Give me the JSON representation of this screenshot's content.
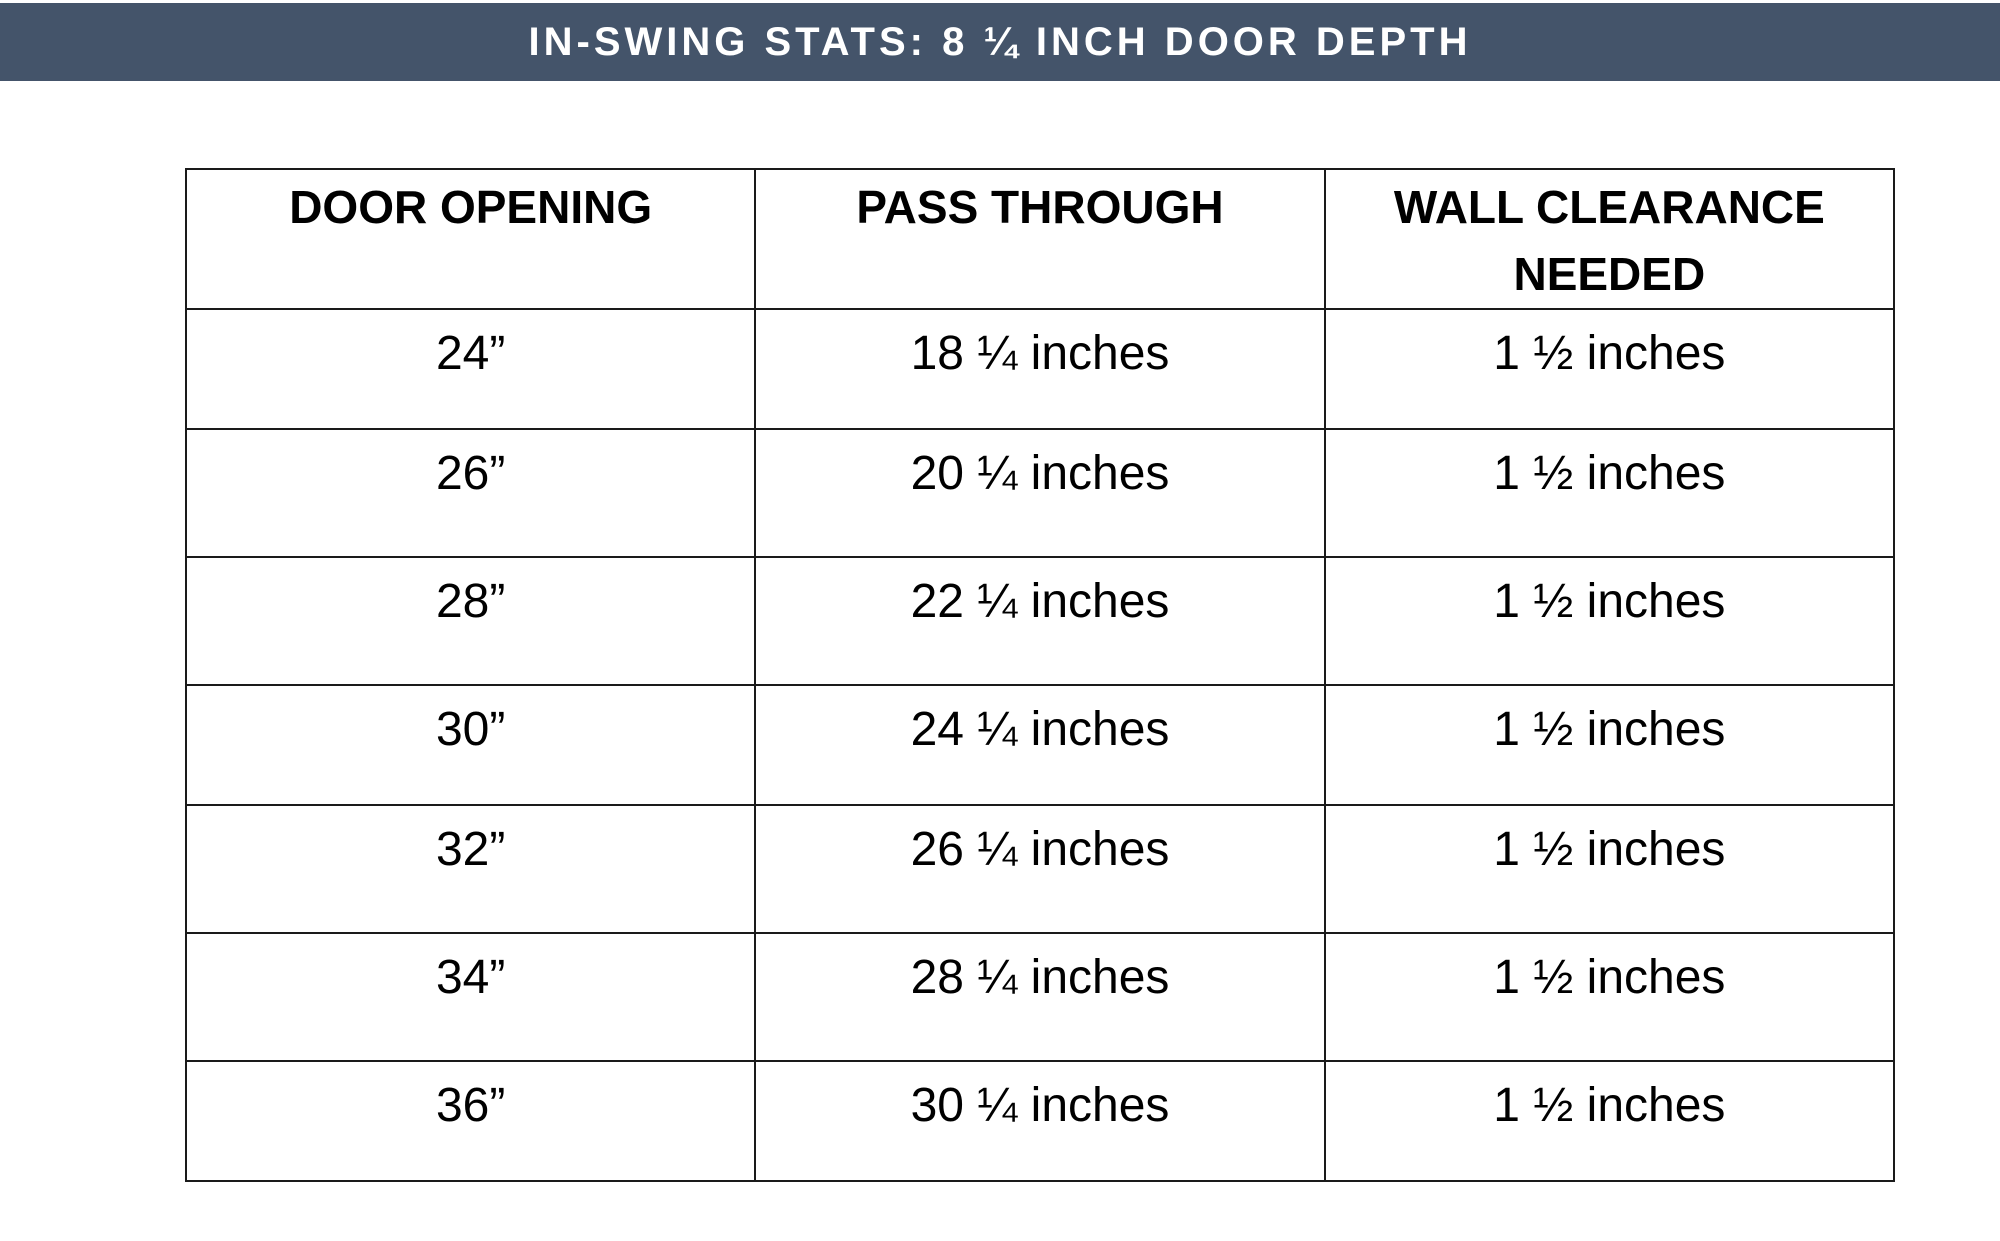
{
  "banner": {
    "title": "IN-SWING STATS: 8 ¼ INCH DOOR DEPTH"
  },
  "table": {
    "headers": [
      "DOOR OPENING",
      "PASS THROUGH",
      "WALL CLEARANCE NEEDED"
    ],
    "rows": [
      [
        "24”",
        "18 ¼ inches",
        "1 ½ inches"
      ],
      [
        "26”",
        "20 ¼ inches",
        "1 ½ inches"
      ],
      [
        "28”",
        "22 ¼ inches",
        "1 ½ inches"
      ],
      [
        "30”",
        "24 ¼ inches",
        "1 ½ inches"
      ],
      [
        "32”",
        "26 ¼ inches",
        "1 ½ inches"
      ],
      [
        "34”",
        "28 ¼ inches",
        "1 ½ inches"
      ],
      [
        "36”",
        "30 ¼ inches",
        "1 ½ inches"
      ]
    ]
  }
}
